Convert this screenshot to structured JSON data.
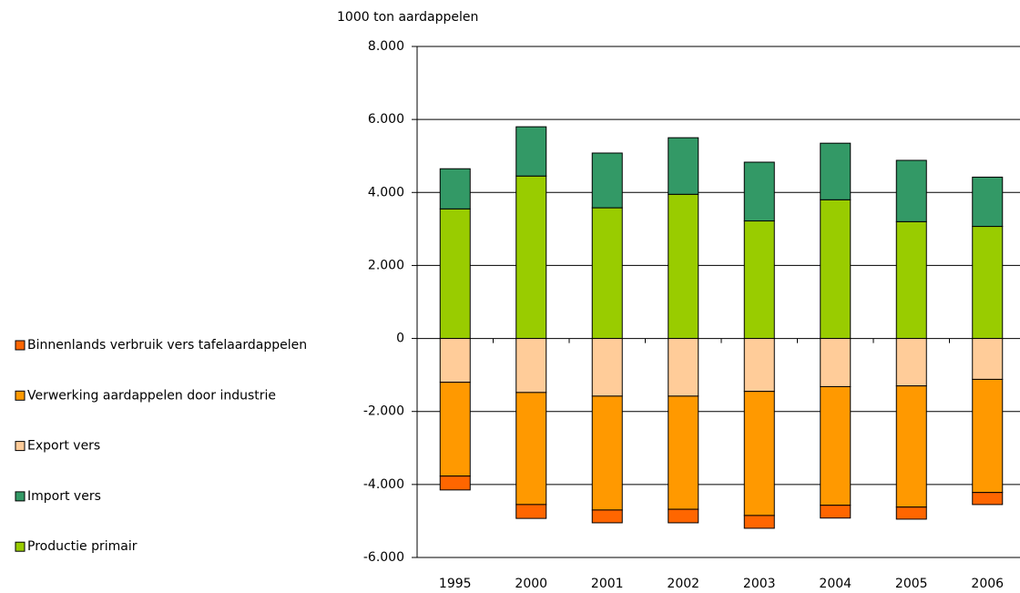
{
  "chart_data": {
    "type": "bar",
    "stacked": true,
    "y_label": "1000 ton aardappelen",
    "categories": [
      "1995",
      "2000",
      "2001",
      "2002",
      "2003",
      "2004",
      "2005",
      "2006"
    ],
    "series": [
      {
        "name": "Binnenlands verbruik vers tafelaardappelen",
        "color": "#ff6600",
        "values": [
          -380,
          -380,
          -350,
          -370,
          -350,
          -350,
          -330,
          -330
        ]
      },
      {
        "name": "Verwerking aardappelen door industrie",
        "color": "#ff9900",
        "values": [
          -2570,
          -3070,
          -3120,
          -3100,
          -3400,
          -3250,
          -3320,
          -3100
        ]
      },
      {
        "name": "Export vers",
        "color": "#ffcc99",
        "values": [
          -1200,
          -1480,
          -1580,
          -1580,
          -1450,
          -1320,
          -1300,
          -1120
        ]
      },
      {
        "name": "Import vers",
        "color": "#339966",
        "values": [
          1100,
          1350,
          1500,
          1550,
          1610,
          1550,
          1680,
          1350
        ]
      },
      {
        "name": "Productie primair",
        "color": "#99cc00",
        "values": [
          3550,
          4450,
          3580,
          3950,
          3220,
          3800,
          3200,
          3070
        ]
      }
    ],
    "ylim": [
      -6000,
      8000
    ],
    "yticks": [
      {
        "value": -6000,
        "label": "-6.000"
      },
      {
        "value": -4000,
        "label": "-4.000"
      },
      {
        "value": -2000,
        "label": "-2.000"
      },
      0,
      {
        "value": 2000,
        "label": "2.000"
      },
      {
        "value": 4000,
        "label": "4.000"
      },
      {
        "value": 6000,
        "label": "6.000"
      },
      {
        "value": 8000,
        "label": "8.000"
      }
    ],
    "grid": true,
    "legend": "left"
  }
}
